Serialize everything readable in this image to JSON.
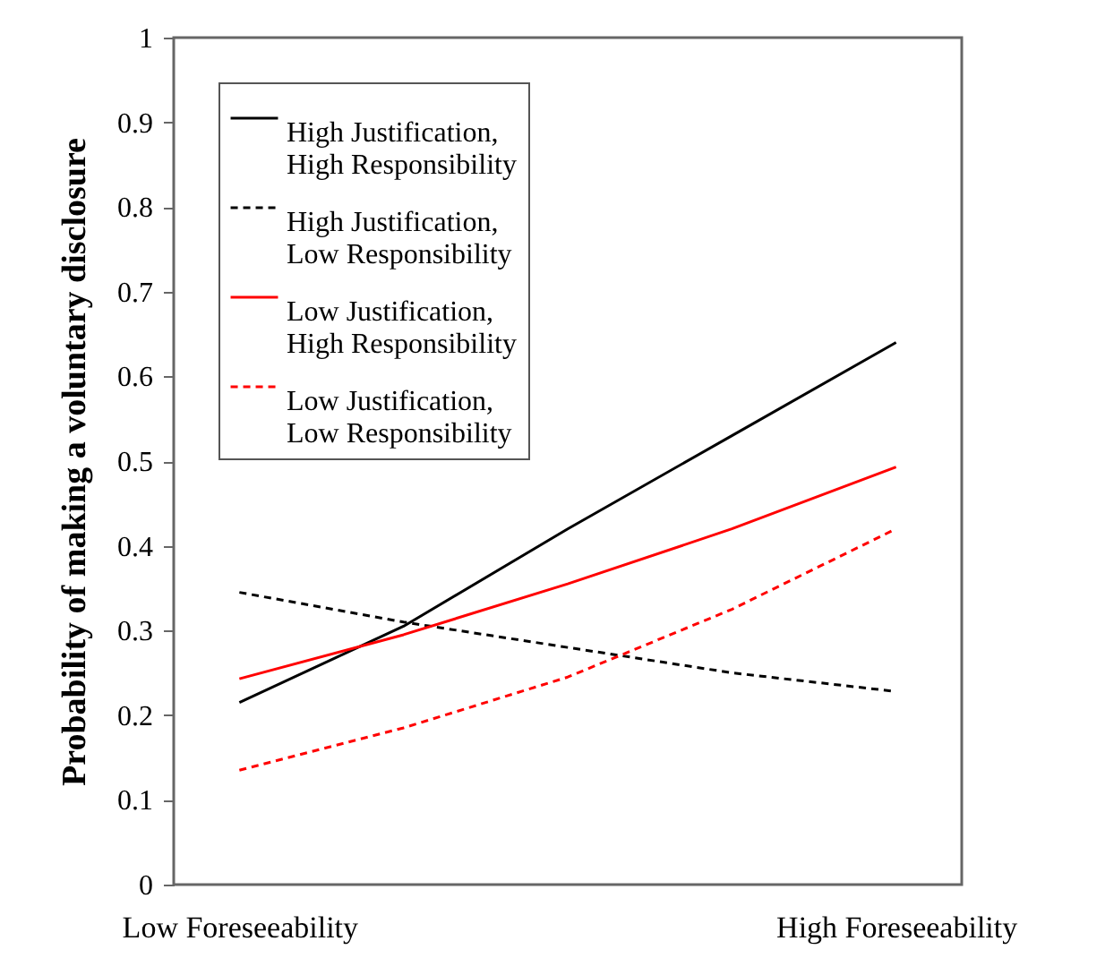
{
  "chart_data": {
    "type": "line",
    "ylabel": "Probability of making a voluntary disclosure",
    "categories": [
      "Low Foreseeability",
      null,
      null,
      null,
      "High Foreseeability"
    ],
    "ylim": [
      0,
      1
    ],
    "yticks": [
      0,
      0.1,
      0.2,
      0.3,
      0.4,
      0.5,
      0.6,
      0.7,
      0.8,
      0.9,
      1
    ],
    "grid": false,
    "legend": "top left",
    "marker": "none",
    "series": [
      {
        "name": "High Justification, High Responsibility",
        "color": "#000000",
        "line_style": "solid",
        "values": [
          0.215,
          0.305,
          0.42,
          0.53,
          0.64
        ]
      },
      {
        "name": "High Justification, Low Responsibility",
        "color": "#000000",
        "line_style": "dashed",
        "values": [
          0.345,
          0.31,
          0.28,
          0.25,
          0.228
        ]
      },
      {
        "name": "Low Justification, High Responsibility",
        "color": "#ff0000",
        "line_style": "solid",
        "values": [
          0.243,
          0.295,
          0.355,
          0.42,
          0.493
        ]
      },
      {
        "name": "Low Justification, Low Responsibility",
        "color": "#ff0000",
        "line_style": "dashed",
        "values": [
          0.135,
          0.185,
          0.245,
          0.325,
          0.42
        ]
      }
    ]
  }
}
